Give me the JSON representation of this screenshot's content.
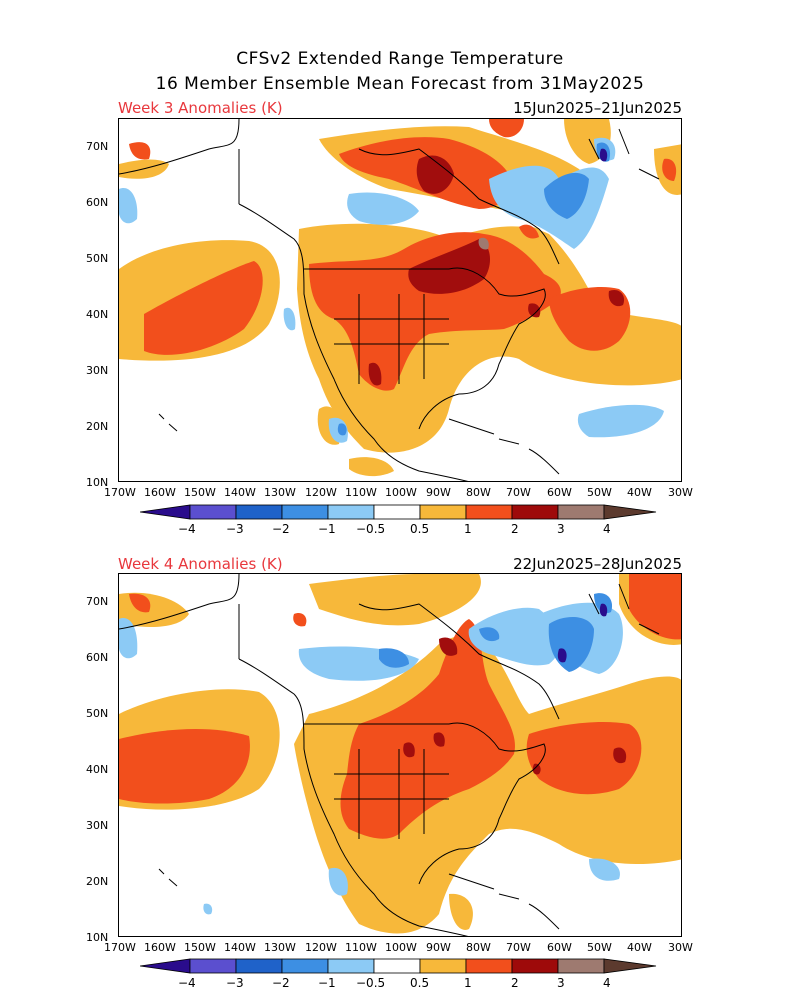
{
  "header": {
    "title_line1": "CFSv2 Extended Range Temperature",
    "title_line2": "16 Member Ensemble Mean Forecast from 31May2025"
  },
  "panels": [
    {
      "label": "Week 3 Anomalies (K)",
      "date_range": "15Jun2025–21Jun2025"
    },
    {
      "label": "Week 4 Anomalies (K)",
      "date_range": "22Jun2025–28Jun2025"
    }
  ],
  "axes": {
    "lat_ticks": [
      "70N",
      "60N",
      "50N",
      "40N",
      "30N",
      "20N",
      "10N"
    ],
    "lon_ticks": [
      "170W",
      "160W",
      "150W",
      "140W",
      "130W",
      "120W",
      "110W",
      "100W",
      "90W",
      "80W",
      "70W",
      "60W",
      "50W",
      "40W",
      "30W"
    ]
  },
  "colorbar": {
    "labels": [
      "−4",
      "−3",
      "−2",
      "−1",
      "−0.5",
      "0.5",
      "1",
      "2",
      "3",
      "4"
    ],
    "colors": [
      "#2a0c8c",
      "#5b4fcf",
      "#1f62c9",
      "#3d8fe3",
      "#8ccaf5",
      "#ffffff",
      "#f7b83a",
      "#f24f1c",
      "#9e0a0a",
      "#9e7a70",
      "#5c3a2e"
    ]
  },
  "colors": {
    "light_orange": "#f7b83a",
    "orange_red": "#f24f1c",
    "dark_red": "#a10d0d",
    "brownish": "#9e7a70",
    "light_blue": "#8ccaf5",
    "mid_blue": "#3d8fe3",
    "blue": "#1f62c9",
    "deep_blue": "#2a0c8c",
    "label_red": "#e8383d"
  }
}
